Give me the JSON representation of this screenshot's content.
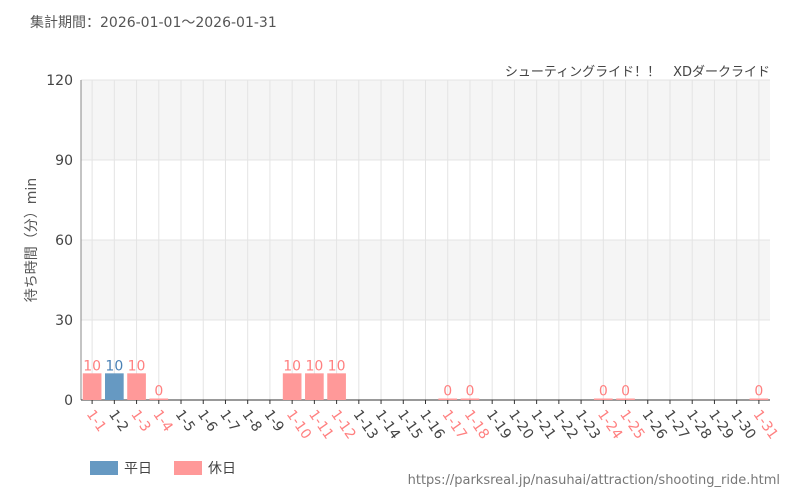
{
  "period": "集計期間：2026-01-01～2026-01-31",
  "url": "https://parksreal.jp/nasuhai/attraction/shooting_ride.html",
  "colors": {
    "weekday": "#6699c2",
    "holiday": "#ff9999",
    "weekday_label": "#4a80b5",
    "holiday_label": "#ff8080"
  },
  "chart_data": {
    "type": "bar",
    "title": "シューティングライド！！　XDダークライド",
    "ylabel": "待ち時間（分）min",
    "ylim": [
      0,
      120
    ],
    "yticks": [
      0,
      30,
      60,
      90,
      120
    ],
    "grid": true,
    "legend_position": "bottom-left",
    "series": [
      {
        "name": "平日"
      },
      {
        "name": "休日"
      }
    ],
    "categories": [
      "1-1",
      "1-2",
      "1-3",
      "1-4",
      "1-5",
      "1-6",
      "1-7",
      "1-8",
      "1-9",
      "1-10",
      "1-11",
      "1-12",
      "1-13",
      "1-14",
      "1-15",
      "1-16",
      "1-17",
      "1-18",
      "1-19",
      "1-20",
      "1-21",
      "1-22",
      "1-23",
      "1-24",
      "1-25",
      "1-26",
      "1-27",
      "1-28",
      "1-29",
      "1-30",
      "1-31"
    ],
    "values": [
      10,
      10,
      10,
      0,
      null,
      null,
      null,
      null,
      null,
      10,
      10,
      10,
      null,
      null,
      null,
      null,
      0,
      0,
      null,
      null,
      null,
      null,
      null,
      0,
      0,
      null,
      null,
      null,
      null,
      null,
      0
    ],
    "holiday": [
      true,
      false,
      true,
      true,
      false,
      false,
      false,
      false,
      false,
      true,
      true,
      true,
      false,
      false,
      false,
      false,
      true,
      true,
      false,
      false,
      false,
      false,
      false,
      true,
      true,
      false,
      false,
      false,
      false,
      false,
      true
    ]
  }
}
